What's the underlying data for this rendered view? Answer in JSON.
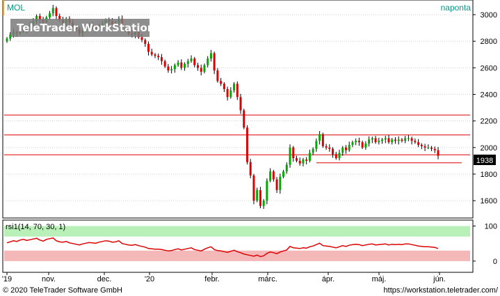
{
  "header": {
    "symbol": "MOL",
    "period": "naponta",
    "watermark": "TeleTrader WorkStation"
  },
  "footer": {
    "copyright": "© 2020 TeleTrader Software GmbH",
    "url": "https://workstation.teletrader.com/"
  },
  "colors": {
    "bull": "#00aa00",
    "bear": "#dd0000",
    "hline": "#dd0000",
    "accent_teal": "#009a8a",
    "rsi_line": "#dd0000",
    "rsi_over": "#b8f0b8",
    "rsi_under": "#f5b8b8"
  },
  "chart_data": [
    {
      "type": "candlestick",
      "title": "MOL",
      "ylim": [
        1480,
        3100
      ],
      "y_ticks": [
        1600,
        1800,
        2000,
        2200,
        2400,
        2600,
        2800,
        3000
      ],
      "x_ticks": [
        "'19",
        "nov.",
        "dec.",
        "'20",
        "febr.",
        "márc.",
        "ápr.",
        "máj.",
        "jún."
      ],
      "last_value_label": "1938",
      "horizontal_lines": [
        2245,
        2095,
        1945,
        1885
      ],
      "series": [
        {
          "name": "close",
          "values": [
            2820,
            2850,
            2870,
            2860,
            2900,
            2880,
            2910,
            2930,
            2950,
            2990,
            2960,
            2940,
            2980,
            3010,
            3050,
            2990,
            2960,
            2930,
            2970,
            2940,
            2910,
            2890,
            2860,
            2880,
            2900,
            2920,
            2910,
            2895,
            2915,
            2930,
            2960,
            2950,
            2925,
            2940,
            2970,
            2900,
            2880,
            2860,
            2850,
            2870,
            2830,
            2810,
            2780,
            2720,
            2700,
            2690,
            2680,
            2650,
            2610,
            2580,
            2590,
            2620,
            2640,
            2600,
            2630,
            2650,
            2670,
            2620,
            2600,
            2570,
            2620,
            2670,
            2710,
            2580,
            2500,
            2480,
            2440,
            2380,
            2430,
            2480,
            2380,
            2280,
            2150,
            1890,
            1790,
            1600,
            1680,
            1560,
            1600,
            1750,
            1820,
            1760,
            1680,
            1780,
            1820,
            1870,
            2000,
            1920,
            1900,
            1880,
            1910,
            1900,
            1960,
            1990,
            2050,
            2100,
            2010,
            2000,
            1990,
            1950,
            1920,
            1960,
            2000,
            1980,
            2020,
            2040,
            2050,
            2040,
            2000,
            2030,
            2060,
            2070,
            2040,
            2050,
            2060,
            2070,
            2040,
            2060,
            2050,
            2060,
            2050,
            2070,
            2070,
            2050,
            2040,
            2020,
            2010,
            2000,
            2000,
            1990,
            1980,
            1938
          ]
        },
        {
          "name": "rsi1(14, 70, 30, 1)",
          "values": [
            52,
            55,
            58,
            56,
            60,
            62,
            59,
            61,
            63,
            65,
            60,
            57,
            62,
            64,
            66,
            58,
            55,
            54,
            56,
            52,
            50,
            48,
            46,
            49,
            51,
            53,
            52,
            51,
            54,
            56,
            58,
            57,
            54,
            55,
            58,
            50,
            48,
            46,
            45,
            47,
            44,
            42,
            40,
            36,
            35,
            34,
            34,
            33,
            31,
            29,
            30,
            33,
            35,
            32,
            34,
            36,
            38,
            33,
            31,
            29,
            34,
            38,
            41,
            33,
            30,
            29,
            27,
            25,
            28,
            31,
            27,
            24,
            20,
            18,
            16,
            14,
            17,
            13,
            15,
            22,
            26,
            24,
            21,
            26,
            29,
            32,
            42,
            38,
            37,
            36,
            38,
            37,
            41,
            43,
            47,
            51,
            44,
            43,
            42,
            40,
            38,
            41,
            44,
            42,
            45,
            47,
            48,
            47,
            44,
            46,
            48,
            49,
            46,
            47,
            48,
            49,
            46,
            48,
            47,
            48,
            47,
            49,
            49,
            47,
            45,
            43,
            42,
            41,
            41,
            40,
            39,
            36
          ]
        }
      ],
      "subtitle": "rsi1(14, 70, 30, 1)",
      "rsi_ylim": [
        -30,
        115
      ],
      "rsi_ticks": [
        0,
        100
      ],
      "rsi_bands": [
        70,
        30
      ]
    }
  ]
}
